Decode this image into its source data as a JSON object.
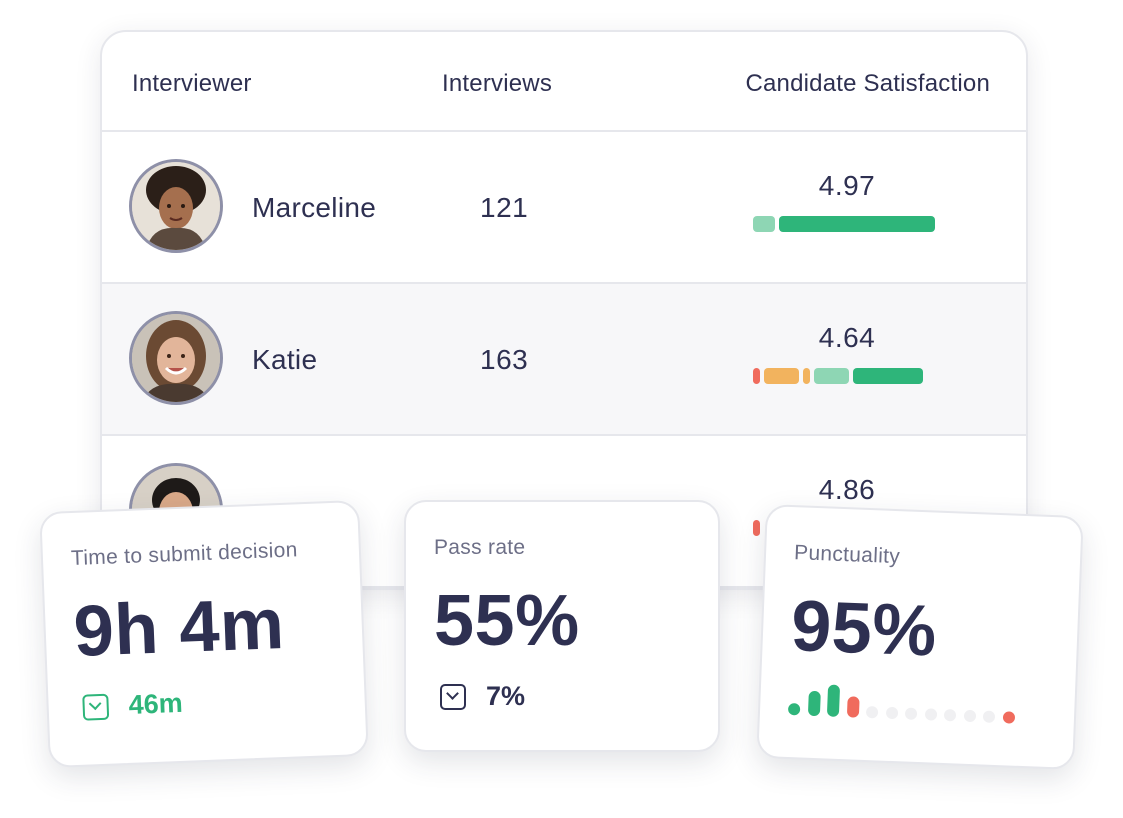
{
  "table": {
    "headers": {
      "interviewer": "Interviewer",
      "interviews": "Interviews",
      "satisfaction": "Candidate Satisfaction"
    },
    "rows": [
      {
        "name": "Marceline",
        "interviews": "121",
        "score": "4.97",
        "distribution": [
          {
            "color": "#8ed6b4",
            "share": 0.14
          },
          {
            "color": "#2eb57a",
            "share": 0.86
          }
        ]
      },
      {
        "name": "Katie",
        "interviews": "163",
        "score": "4.64",
        "distribution": [
          {
            "color": "#f06b5d",
            "share": 0.06
          },
          {
            "color": "#f2b35e",
            "share": 0.21
          },
          {
            "color": "#f2b35e",
            "share": 0.06
          },
          {
            "color": "#8ed6b4",
            "share": 0.21
          },
          {
            "color": "#2eb57a",
            "share": 0.4
          }
        ]
      },
      {
        "name": "",
        "interviews": "",
        "score": "4.86",
        "distribution": [
          {
            "color": "#f06b5d",
            "share": 0.06
          }
        ]
      }
    ]
  },
  "metrics": {
    "time_to_submit": {
      "label": "Time to submit decision",
      "value": "9h 4m",
      "delta": "46m",
      "delta_icon": "chevron-down-icon"
    },
    "pass_rate": {
      "label": "Pass rate",
      "value": "55%",
      "delta": "7%",
      "delta_icon": "chevron-down-icon"
    },
    "punctuality": {
      "label": "Punctuality",
      "value": "95%",
      "bars": [
        {
          "level": 0.2,
          "color": "#2eb57a"
        },
        {
          "level": 0.62,
          "color": "#2eb57a"
        },
        {
          "level": 0.8,
          "color": "#2eb57a"
        },
        {
          "level": 0.52,
          "color": "#f06b5d"
        },
        {
          "level": 0.2,
          "color": "#f0f0f2"
        },
        {
          "level": 0.2,
          "color": "#f0f0f2"
        },
        {
          "level": 0.2,
          "color": "#f0f0f2"
        },
        {
          "level": 0.2,
          "color": "#f0f0f2"
        },
        {
          "level": 0.2,
          "color": "#f0f0f2"
        },
        {
          "level": 0.2,
          "color": "#f0f0f2"
        },
        {
          "level": 0.2,
          "color": "#f0f0f2"
        },
        {
          "level": 0.2,
          "color": "#f06b5d"
        }
      ]
    }
  }
}
